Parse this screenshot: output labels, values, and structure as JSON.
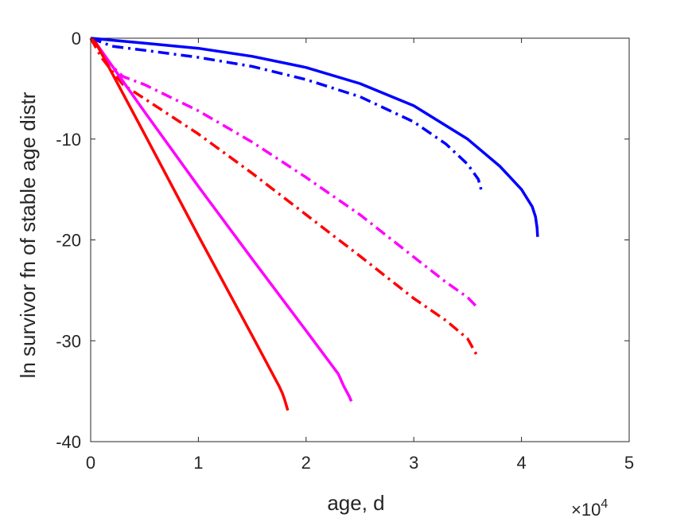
{
  "chart_data": {
    "type": "line",
    "title": "",
    "xlabel": "age, d",
    "ylabel": "ln survivor fn of stable age distr",
    "x_exponent_label": {
      "base": "×10",
      "exp": "4"
    },
    "xlim": [
      0,
      50000
    ],
    "ylim": [
      -40,
      0
    ],
    "x_ticks": [
      0,
      10000,
      20000,
      30000,
      40000,
      50000
    ],
    "x_tick_labels": [
      "0",
      "1",
      "2",
      "3",
      "4",
      "5"
    ],
    "y_ticks": [
      0,
      -10,
      -20,
      -30,
      -40
    ],
    "y_tick_labels": [
      "0",
      "-10",
      "-20",
      "-30",
      "-40"
    ],
    "grid": false,
    "series": [
      {
        "color": "#0000FF",
        "style": "solid",
        "x": [
          0,
          5000,
          10000,
          15000,
          20000,
          25000,
          30000,
          35000,
          38000,
          40000,
          41000,
          41300,
          41450,
          41500
        ],
        "y": [
          0,
          -0.5,
          -1.0,
          -1.8,
          -2.9,
          -4.5,
          -6.7,
          -10.0,
          -12.7,
          -15.0,
          -16.7,
          -17.7,
          -18.8,
          -19.7
        ]
      },
      {
        "color": "#0000FF",
        "style": "dashdot",
        "x": [
          0,
          2000,
          5000,
          10000,
          15000,
          20000,
          25000,
          30000,
          33000,
          35000,
          36000,
          36300
        ],
        "y": [
          0,
          -0.8,
          -1.2,
          -1.9,
          -2.8,
          -4.1,
          -5.8,
          -8.3,
          -10.5,
          -12.5,
          -14.0,
          -15.2
        ]
      },
      {
        "color": "#FF00FF",
        "style": "dashdot",
        "x": [
          0,
          1000,
          2000,
          3000,
          5000,
          10000,
          15000,
          20000,
          25000,
          30000,
          33000,
          35000,
          36000
        ],
        "y": [
          0,
          -1.5,
          -2.8,
          -3.8,
          -4.6,
          -7.2,
          -10.3,
          -13.8,
          -17.5,
          -21.7,
          -24.2,
          -25.7,
          -26.8
        ]
      },
      {
        "color": "#FF0000",
        "style": "dashdot",
        "x": [
          0,
          1000,
          2000,
          3000,
          5000,
          10000,
          15000,
          20000,
          25000,
          30000,
          33000,
          35000,
          36000
        ],
        "y": [
          0,
          -1.9,
          -3.3,
          -4.6,
          -6.0,
          -9.5,
          -13.4,
          -17.5,
          -21.6,
          -25.8,
          -28.0,
          -29.8,
          -31.7
        ]
      },
      {
        "color": "#FF00FF",
        "style": "solid",
        "x": [
          0,
          500,
          5000,
          10000,
          15000,
          20000,
          23000,
          23500,
          24000,
          24200
        ],
        "y": [
          0,
          -0.5,
          -7.3,
          -14.7,
          -21.9,
          -29.0,
          -33.3,
          -34.5,
          -35.5,
          -36.0
        ]
      },
      {
        "color": "#FF0000",
        "style": "solid",
        "x": [
          0,
          500,
          5000,
          10000,
          15000,
          17500,
          17800,
          18000,
          18300
        ],
        "y": [
          0,
          -0.5,
          -9.5,
          -19.6,
          -29.5,
          -34.5,
          -35.2,
          -35.8,
          -36.9
        ]
      }
    ]
  }
}
